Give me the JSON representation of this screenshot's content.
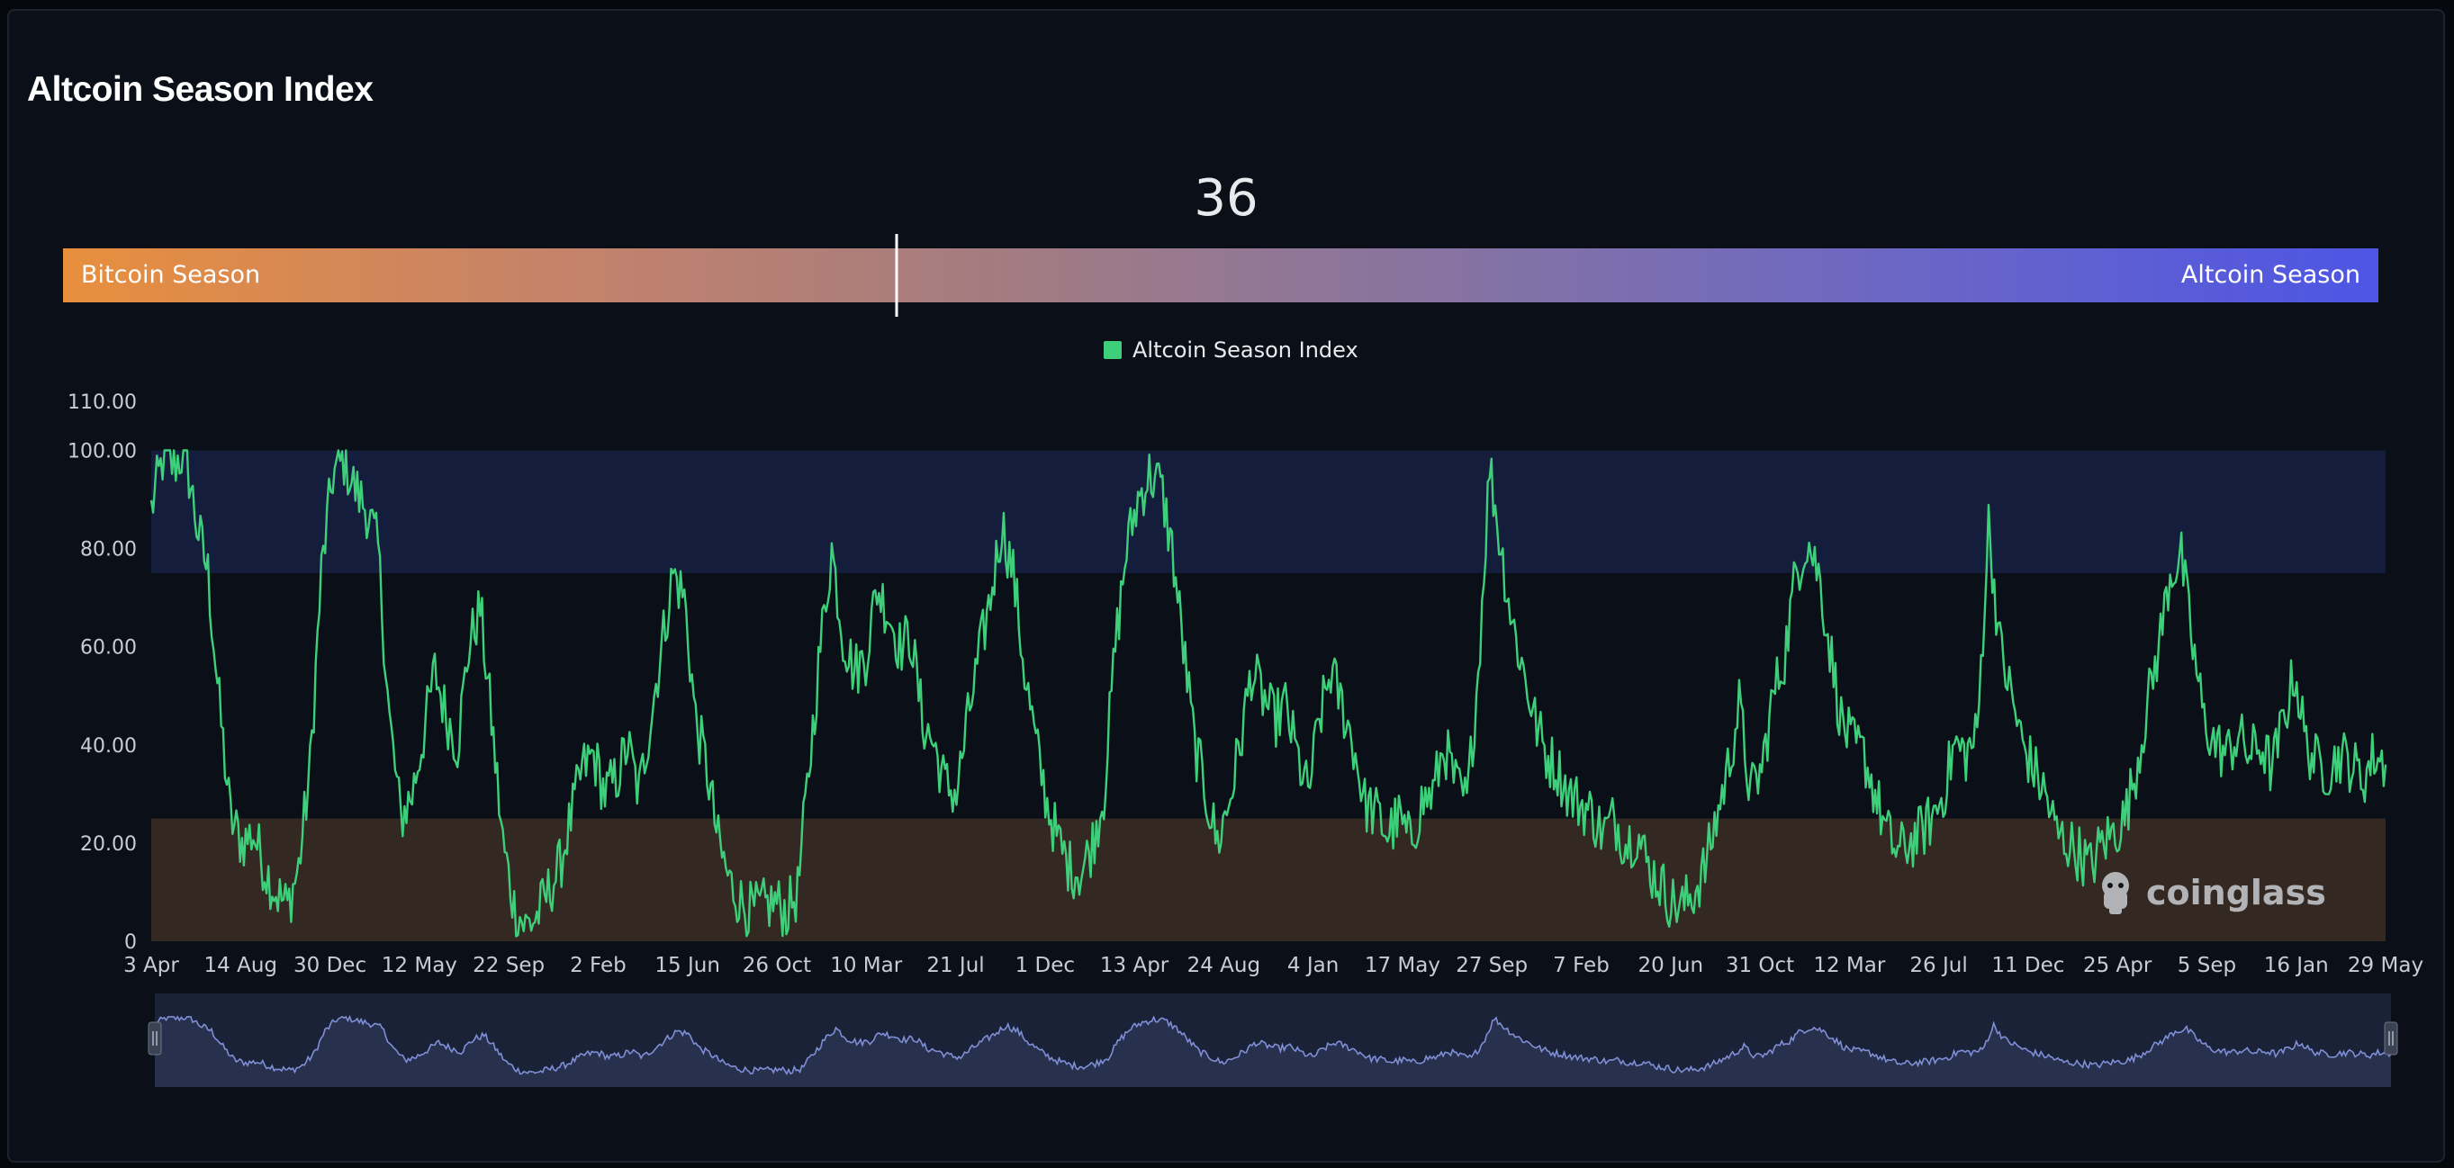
{
  "title": "Altcoin Season Index",
  "gauge": {
    "value": "36",
    "value_num": 36,
    "left_label": "Bitcoin Season",
    "right_label": "Altcoin Season"
  },
  "legend": {
    "label": "Altcoin Season Index",
    "color": "#3ecf7a"
  },
  "colors": {
    "line": "#3ecf7a",
    "altcoin_zone": "#151d3d",
    "bitcoin_zone": "#342822",
    "navigator_line": "#7f8fd6",
    "navigator_fill": "#27304d"
  },
  "watermark": "coinglass",
  "chart_data": {
    "type": "line",
    "title": "Altcoin Season Index",
    "series": [
      {
        "name": "Altcoin Season Index",
        "color": "#3ecf7a",
        "values": [
          88,
          98,
          97,
          100,
          85,
          75,
          48,
          25,
          20,
          22,
          15,
          10,
          7,
          15,
          35,
          75,
          95,
          98,
          92,
          88,
          80,
          45,
          25,
          30,
          42,
          55,
          46,
          40,
          60,
          68,
          45,
          20,
          7,
          3,
          5,
          10,
          15,
          25,
          35,
          38,
          30,
          33,
          40,
          30,
          45,
          60,
          75,
          70,
          45,
          35,
          20,
          12,
          8,
          6,
          7,
          8,
          6,
          10,
          35,
          60,
          80,
          62,
          55,
          58,
          72,
          67,
          60,
          62,
          45,
          40,
          32,
          30,
          45,
          58,
          70,
          85,
          75,
          55,
          40,
          28,
          20,
          15,
          14,
          20,
          30,
          60,
          80,
          90,
          95,
          93,
          80,
          60,
          40,
          30,
          20,
          28,
          40,
          55,
          50,
          45,
          48,
          38,
          30,
          45,
          55,
          48,
          40,
          28,
          26,
          22,
          25,
          20,
          28,
          30,
          40,
          32,
          28,
          55,
          97,
          80,
          65,
          55,
          45,
          38,
          35,
          30,
          28,
          26,
          22,
          25,
          20,
          22,
          15,
          12,
          8,
          7,
          10,
          15,
          25,
          35,
          48,
          30,
          35,
          50,
          58,
          75,
          82,
          75,
          60,
          45,
          40,
          38,
          30,
          22,
          18,
          20,
          22,
          25,
          30,
          40,
          38,
          42,
          85,
          60,
          50,
          40,
          35,
          30,
          22,
          20,
          18,
          15,
          20,
          22,
          25,
          35,
          48,
          60,
          75,
          78,
          60,
          45,
          40,
          38,
          42,
          38,
          40,
          35,
          45,
          55,
          40,
          36,
          35,
          38,
          36,
          33,
          38,
          36
        ]
      }
    ],
    "x_tick_labels": [
      "3 Apr",
      "14 Aug",
      "30 Dec",
      "12 May",
      "22 Sep",
      "2 Feb",
      "15 Jun",
      "26 Oct",
      "10 Mar",
      "21 Jul",
      "1 Dec",
      "13 Apr",
      "24 Aug",
      "4 Jan",
      "17 May",
      "27 Sep",
      "7 Feb",
      "20 Jun",
      "31 Oct",
      "12 Mar",
      "26 Jul",
      "11 Dec",
      "25 Apr",
      "5 Sep",
      "16 Jan",
      "29 May"
    ],
    "y_tick_labels": [
      "0",
      "20.00",
      "40.00",
      "60.00",
      "80.00",
      "100.00",
      "110.00"
    ],
    "y_ticks": [
      0,
      20,
      40,
      60,
      80,
      100,
      110
    ],
    "ylim": [
      0,
      110
    ],
    "bands": [
      {
        "from": 75,
        "to": 100,
        "zone": "altcoin"
      },
      {
        "from": 0,
        "to": 25,
        "zone": "bitcoin"
      }
    ],
    "grid": false,
    "legend_position": "top-center"
  }
}
